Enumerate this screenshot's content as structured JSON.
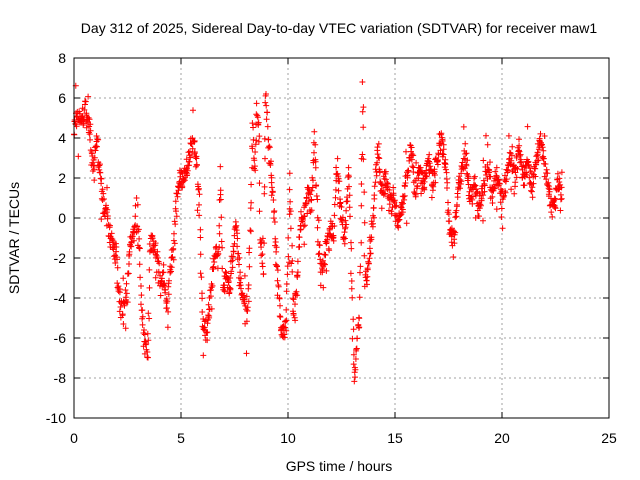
{
  "chart_data": {
    "type": "scatter",
    "title": "Day 312 of 2025, Sidereal Day-to-day VTEC variation (SDTVAR) for receiver maw1",
    "xlabel": "GPS time / hours",
    "ylabel": "SDTVAR / TECUs",
    "xlim": [
      0,
      25
    ],
    "ylim": [
      -10,
      8
    ],
    "x_ticks": [
      "0",
      "5",
      "10",
      "15",
      "20",
      "25"
    ],
    "y_ticks": [
      "-10",
      "-8",
      "-6",
      "-4",
      "-2",
      "0",
      "2",
      "4",
      "6",
      "8"
    ],
    "grid": true,
    "marker": "+",
    "colors": {
      "points": "#ff0000",
      "grid": "#a0a0a0",
      "axis": "#000000"
    },
    "anchors": [
      [
        0.0,
        4.6
      ],
      [
        0.15,
        5.1
      ],
      [
        0.35,
        4.8
      ],
      [
        0.55,
        5.4
      ],
      [
        0.75,
        4.2
      ],
      [
        0.85,
        2.8
      ],
      [
        0.95,
        2.5
      ],
      [
        1.05,
        4.0
      ],
      [
        1.15,
        2.8
      ],
      [
        1.4,
        0.6
      ],
      [
        1.55,
        0.1
      ],
      [
        1.65,
        -0.8
      ],
      [
        1.8,
        -1.2
      ],
      [
        2.0,
        -2.2
      ],
      [
        2.15,
        -4.3
      ],
      [
        2.3,
        -4.6
      ],
      [
        2.45,
        -3.9
      ],
      [
        2.6,
        -1.6
      ],
      [
        2.75,
        -0.9
      ],
      [
        2.9,
        -0.2
      ],
      [
        3.05,
        -1.4
      ],
      [
        3.15,
        -4.2
      ],
      [
        3.3,
        -6.2
      ],
      [
        3.45,
        -6.6
      ],
      [
        3.55,
        -1.4
      ],
      [
        3.75,
        -1.0
      ],
      [
        3.95,
        -2.5
      ],
      [
        4.05,
        -3.4
      ],
      [
        4.2,
        -2.8
      ],
      [
        4.35,
        -4.8
      ],
      [
        4.5,
        -2.4
      ],
      [
        4.65,
        -1.8
      ],
      [
        4.75,
        0.2
      ],
      [
        4.9,
        1.8
      ],
      [
        5.05,
        2.0
      ],
      [
        5.3,
        2.4
      ],
      [
        5.55,
        4.0
      ],
      [
        5.7,
        3.0
      ],
      [
        5.85,
        0.6
      ],
      [
        6.0,
        -5.2
      ],
      [
        6.2,
        -5.8
      ],
      [
        6.6,
        -1.4
      ],
      [
        6.75,
        -2.0
      ],
      [
        6.85,
        2.6
      ],
      [
        6.95,
        -3.6
      ],
      [
        7.1,
        -2.8
      ],
      [
        7.25,
        -3.8
      ],
      [
        7.55,
        -0.4
      ],
      [
        7.8,
        -3.5
      ],
      [
        7.95,
        -4.4
      ],
      [
        8.05,
        -5.2
      ],
      [
        8.15,
        -4.0
      ],
      [
        8.35,
        4.4
      ],
      [
        8.45,
        2.2
      ],
      [
        8.55,
        5.4
      ],
      [
        8.65,
        4.0
      ],
      [
        8.7,
        -0.8
      ],
      [
        8.85,
        -3.0
      ],
      [
        8.95,
        6.0
      ],
      [
        9.7,
        -5.8
      ],
      [
        9.9,
        -5.5
      ],
      [
        10.1,
        1.6
      ],
      [
        10.25,
        -4.8
      ],
      [
        10.4,
        -4.0
      ],
      [
        10.55,
        -0.2
      ],
      [
        10.75,
        0.0
      ],
      [
        10.95,
        1.4
      ],
      [
        11.1,
        0.6
      ],
      [
        11.25,
        4.2
      ],
      [
        11.4,
        -1.0
      ],
      [
        11.55,
        -2.6
      ],
      [
        11.75,
        -1.6
      ],
      [
        11.95,
        -0.3
      ],
      [
        12.15,
        -0.8
      ],
      [
        12.3,
        3.0
      ],
      [
        12.45,
        0.4
      ],
      [
        12.65,
        -1.2
      ],
      [
        12.85,
        2.4
      ],
      [
        13.0,
        -4.0
      ],
      [
        13.1,
        -8.2
      ],
      [
        13.2,
        -6.5
      ],
      [
        13.35,
        -4.6
      ],
      [
        13.5,
        6.4
      ],
      [
        13.6,
        -3.4
      ],
      [
        13.75,
        -2.4
      ],
      [
        13.9,
        -0.8
      ],
      [
        14.05,
        1.0
      ],
      [
        14.2,
        3.6
      ],
      [
        14.4,
        0.8
      ],
      [
        14.55,
        2.0
      ],
      [
        14.75,
        0.8
      ],
      [
        14.95,
        1.0
      ],
      [
        15.15,
        -0.4
      ],
      [
        15.35,
        0.6
      ],
      [
        15.55,
        2.0
      ],
      [
        15.75,
        3.6
      ],
      [
        15.95,
        1.2
      ],
      [
        16.15,
        2.4
      ],
      [
        16.35,
        1.6
      ],
      [
        16.55,
        3.0
      ],
      [
        16.75,
        1.8
      ],
      [
        16.95,
        2.6
      ],
      [
        17.15,
        4.0
      ],
      [
        17.35,
        3.0
      ],
      [
        17.55,
        -0.4
      ],
      [
        17.75,
        -1.2
      ],
      [
        17.95,
        1.6
      ],
      [
        18.15,
        2.6
      ],
      [
        18.3,
        3.4
      ],
      [
        18.5,
        0.8
      ],
      [
        18.7,
        1.8
      ],
      [
        18.9,
        0.4
      ],
      [
        19.1,
        1.4
      ],
      [
        19.35,
        2.6
      ],
      [
        19.55,
        1.0
      ],
      [
        19.75,
        2.4
      ],
      [
        20.0,
        0.8
      ],
      [
        20.2,
        2.2
      ],
      [
        20.4,
        3.0
      ],
      [
        20.6,
        1.8
      ],
      [
        20.8,
        3.6
      ],
      [
        21.0,
        2.0
      ],
      [
        21.2,
        2.8
      ],
      [
        21.4,
        1.6
      ],
      [
        21.6,
        2.6
      ],
      [
        21.8,
        3.8
      ],
      [
        22.0,
        2.4
      ],
      [
        22.2,
        1.4
      ],
      [
        22.4,
        0.2
      ],
      [
        22.6,
        2.0
      ],
      [
        22.8,
        1.2
      ]
    ],
    "point_count": 1500
  }
}
